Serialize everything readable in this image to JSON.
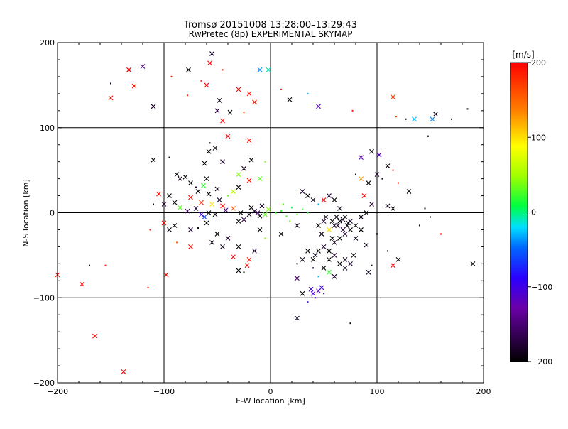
{
  "chart_data": {
    "type": "scatter",
    "title": "Tromsø 20151008 13:28:00–13:29:43",
    "subtitle": "RwPretec (8p) EXPERIMENTAL SKYMAP",
    "xlabel": "E-W location [km]",
    "ylabel": "N-S location [km]",
    "xlim": [
      -200,
      200
    ],
    "ylim": [
      -200,
      200
    ],
    "xticks": [
      "−200",
      "−100",
      "0",
      "100",
      "200"
    ],
    "yticks": [
      "−200",
      "−100",
      "0",
      "100",
      "200"
    ],
    "grid": true,
    "colorbar": {
      "label": "[m/s]",
      "range": [
        -200,
        200
      ],
      "ticks": [
        "200",
        "100",
        "0",
        "−100",
        "−200"
      ]
    },
    "marker_types": [
      "x",
      "dot"
    ],
    "points": [
      [
        -55,
        187,
        "x",
        -180
      ],
      [
        -120,
        172,
        "x",
        -150
      ],
      [
        -57,
        176,
        "x",
        200
      ],
      [
        -77,
        168,
        "x",
        -200
      ],
      [
        -45,
        168,
        "dot",
        190
      ],
      [
        -133,
        168,
        "x",
        200
      ],
      [
        -128,
        149,
        "x",
        190
      ],
      [
        -150,
        135,
        "x",
        200
      ],
      [
        -150,
        152,
        "dot",
        -180
      ],
      [
        -110,
        125,
        "x",
        -180
      ],
      [
        -60,
        150,
        "x",
        200
      ],
      [
        -30,
        145,
        "x",
        190
      ],
      [
        -48,
        132,
        "x",
        -190
      ],
      [
        -20,
        140,
        "x",
        190
      ],
      [
        -10,
        168,
        "x",
        -40
      ],
      [
        -2,
        168,
        "x",
        -10
      ],
      [
        -50,
        120,
        "x",
        -170
      ],
      [
        -15,
        130,
        "x",
        190
      ],
      [
        -78,
        138,
        "dot",
        180
      ],
      [
        -93,
        160,
        "dot",
        190
      ],
      [
        -65,
        155,
        "dot",
        180
      ],
      [
        -25,
        118,
        "dot",
        170
      ],
      [
        -38,
        118,
        "x",
        -200
      ],
      [
        -45,
        108,
        "x",
        200
      ],
      [
        18,
        133,
        "x",
        -200
      ],
      [
        35,
        140,
        "dot",
        -30
      ],
      [
        45,
        125,
        "x",
        -120
      ],
      [
        10,
        145,
        "dot",
        190
      ],
      [
        77,
        120,
        "dot",
        190
      ],
      [
        115,
        136,
        "x",
        170
      ],
      [
        135,
        110,
        "x",
        -30
      ],
      [
        152,
        110,
        "x",
        -40
      ],
      [
        155,
        116,
        "x",
        -190
      ],
      [
        148,
        90,
        "dot",
        -200
      ],
      [
        170,
        110,
        "dot",
        -190
      ],
      [
        185,
        122,
        "dot",
        -200
      ],
      [
        127,
        110,
        "dot",
        -200
      ],
      [
        118,
        113,
        "dot",
        170
      ],
      [
        -40,
        90,
        "x",
        200
      ],
      [
        -20,
        85,
        "x",
        190
      ],
      [
        -57,
        82,
        "dot",
        -200
      ],
      [
        -58,
        72,
        "x",
        -200
      ],
      [
        -52,
        76,
        "x",
        -190
      ],
      [
        -62,
        58,
        "x",
        -200
      ],
      [
        -45,
        60,
        "x",
        -180
      ],
      [
        -95,
        65,
        "dot",
        -190
      ],
      [
        -110,
        62,
        "x",
        -200
      ],
      [
        -88,
        45,
        "x",
        -200
      ],
      [
        -85,
        40,
        "x",
        -190
      ],
      [
        -80,
        42,
        "x",
        -200
      ],
      [
        -75,
        35,
        "x",
        -200
      ],
      [
        -70,
        30,
        "dot",
        -180
      ],
      [
        -68,
        25,
        "x",
        -200
      ],
      [
        -75,
        18,
        "x",
        190
      ],
      [
        -65,
        12,
        "x",
        180
      ],
      [
        -55,
        10,
        "x",
        100
      ],
      [
        -48,
        15,
        "x",
        -180
      ],
      [
        -40,
        20,
        "dot",
        30
      ],
      [
        -35,
        5,
        "x",
        150
      ],
      [
        -45,
        8,
        "x",
        200
      ],
      [
        -58,
        0,
        "x",
        -200
      ],
      [
        -62,
        -5,
        "x",
        -60
      ],
      [
        -52,
        -2,
        "x",
        -200
      ],
      [
        -42,
        3,
        "x",
        -150
      ],
      [
        -70,
        5,
        "x",
        -180
      ],
      [
        -78,
        2,
        "x",
        -160
      ],
      [
        -85,
        6,
        "x",
        30
      ],
      [
        -65,
        -2,
        "x",
        -100
      ],
      [
        -28,
        0,
        "x",
        -200
      ],
      [
        -20,
        -2,
        "x",
        -190
      ],
      [
        -15,
        2,
        "x",
        -180
      ],
      [
        -10,
        -4,
        "x",
        -200
      ],
      [
        -25,
        -8,
        "x",
        -170
      ],
      [
        -18,
        6,
        "x",
        -200
      ],
      [
        -12,
        0,
        "x",
        -150
      ],
      [
        -30,
        -10,
        "x",
        -200
      ],
      [
        -8,
        8,
        "x",
        -180
      ],
      [
        -5,
        -2,
        "x",
        30
      ],
      [
        -2,
        4,
        "x",
        40
      ],
      [
        5,
        0,
        "dot",
        10
      ],
      [
        10,
        2,
        "dot",
        20
      ],
      [
        15,
        -4,
        "dot",
        20
      ],
      [
        20,
        6,
        "dot",
        10
      ],
      [
        25,
        -2,
        "dot",
        30
      ],
      [
        30,
        4,
        "dot",
        20
      ],
      [
        35,
        0,
        "dot",
        10
      ],
      [
        12,
        10,
        "dot",
        30
      ],
      [
        18,
        -10,
        "dot",
        40
      ],
      [
        -35,
        25,
        "x",
        60
      ],
      [
        -30,
        30,
        "x",
        -200
      ],
      [
        -20,
        38,
        "x",
        190
      ],
      [
        -10,
        40,
        "x",
        30
      ],
      [
        -25,
        52,
        "x",
        -190
      ],
      [
        -18,
        62,
        "x",
        -200
      ],
      [
        -5,
        60,
        "dot",
        40
      ],
      [
        -30,
        45,
        "x",
        40
      ],
      [
        -50,
        28,
        "x",
        -190
      ],
      [
        -58,
        22,
        "x",
        -200
      ],
      [
        -60,
        40,
        "x",
        -200
      ],
      [
        -63,
        32,
        "x",
        20
      ],
      [
        -105,
        22,
        "x",
        200
      ],
      [
        -100,
        10,
        "x",
        -180
      ],
      [
        -95,
        20,
        "x",
        -200
      ],
      [
        -90,
        12,
        "x",
        -200
      ],
      [
        -100,
        -12,
        "x",
        200
      ],
      [
        -95,
        -20,
        "x",
        -190
      ],
      [
        -90,
        -15,
        "x",
        -200
      ],
      [
        -75,
        -20,
        "x",
        -180
      ],
      [
        -60,
        -12,
        "x",
        -200
      ],
      [
        -50,
        -25,
        "x",
        -200
      ],
      [
        -55,
        -35,
        "x",
        -190
      ],
      [
        -40,
        -30,
        "x",
        -180
      ],
      [
        -30,
        -40,
        "x",
        -200
      ],
      [
        -20,
        -55,
        "x",
        190
      ],
      [
        -22,
        -62,
        "x",
        200
      ],
      [
        -25,
        -70,
        "dot",
        -200
      ],
      [
        -30,
        -68,
        "x",
        -200
      ],
      [
        -15,
        -45,
        "x",
        -180
      ],
      [
        -5,
        -30,
        "dot",
        40
      ],
      [
        -10,
        -20,
        "x",
        -200
      ],
      [
        -35,
        -52,
        "x",
        200
      ],
      [
        -45,
        -40,
        "x",
        -190
      ],
      [
        -68,
        -18,
        "dot",
        -190
      ],
      [
        -75,
        -40,
        "x",
        190
      ],
      [
        -200,
        -73,
        "x",
        200
      ],
      [
        -177,
        -84,
        "x",
        200
      ],
      [
        -170,
        -62,
        "dot",
        -200
      ],
      [
        -165,
        -145,
        "x",
        200
      ],
      [
        -155,
        -62,
        "dot",
        190
      ],
      [
        -138,
        -187,
        "x",
        200
      ],
      [
        -115,
        -88,
        "dot",
        190
      ],
      [
        -113,
        -20,
        "dot",
        190
      ],
      [
        -98,
        -73,
        "x",
        200
      ],
      [
        -110,
        10,
        "dot",
        -190
      ],
      [
        -88,
        -35,
        "dot",
        150
      ],
      [
        10,
        -25,
        "x",
        -200
      ],
      [
        25,
        -15,
        "x",
        -190
      ],
      [
        30,
        25,
        "x",
        -180
      ],
      [
        35,
        20,
        "x",
        -200
      ],
      [
        40,
        15,
        "x",
        -190
      ],
      [
        45,
        10,
        "dot",
        -30
      ],
      [
        50,
        15,
        "x",
        200
      ],
      [
        55,
        20,
        "x",
        -180
      ],
      [
        60,
        15,
        "x",
        -200
      ],
      [
        65,
        5,
        "x",
        -190
      ],
      [
        70,
        -5,
        "x",
        -200
      ],
      [
        75,
        -10,
        "x",
        -180
      ],
      [
        80,
        -15,
        "x",
        -200
      ],
      [
        85,
        -5,
        "x",
        -190
      ],
      [
        90,
        0,
        "x",
        -200
      ],
      [
        95,
        10,
        "x",
        -180
      ],
      [
        88,
        20,
        "x",
        200
      ],
      [
        92,
        35,
        "x",
        -200
      ],
      [
        85,
        40,
        "x",
        130
      ],
      [
        80,
        45,
        "dot",
        -200
      ],
      [
        100,
        45,
        "x",
        -180
      ],
      [
        105,
        40,
        "dot",
        -190
      ],
      [
        85,
        65,
        "x",
        -120
      ],
      [
        95,
        72,
        "x",
        -200
      ],
      [
        102,
        68,
        "x",
        -110
      ],
      [
        110,
        55,
        "x",
        -200
      ],
      [
        115,
        50,
        "dot",
        190
      ],
      [
        120,
        35,
        "dot",
        190
      ],
      [
        130,
        25,
        "x",
        -200
      ],
      [
        145,
        5,
        "dot",
        -190
      ],
      [
        115,
        5,
        "x",
        -200
      ],
      [
        110,
        8,
        "x",
        -190
      ],
      [
        140,
        -15,
        "dot",
        -200
      ],
      [
        150,
        -5,
        "dot",
        -190
      ],
      [
        160,
        -25,
        "dot",
        190
      ],
      [
        40,
        -55,
        "x",
        -200
      ],
      [
        42,
        -50,
        "x",
        -190
      ],
      [
        45,
        -45,
        "x",
        -200
      ],
      [
        50,
        -40,
        "x",
        -180
      ],
      [
        55,
        -45,
        "x",
        -200
      ],
      [
        60,
        -35,
        "x",
        -190
      ],
      [
        65,
        -30,
        "x",
        -200
      ],
      [
        70,
        -25,
        "x",
        -180
      ],
      [
        75,
        -20,
        "x",
        -200
      ],
      [
        80,
        -30,
        "x",
        -190
      ],
      [
        55,
        -55,
        "x",
        -200
      ],
      [
        60,
        -50,
        "x",
        -180
      ],
      [
        65,
        -60,
        "x",
        -200
      ],
      [
        70,
        -55,
        "x",
        -190
      ],
      [
        75,
        -60,
        "x",
        -180
      ],
      [
        50,
        -65,
        "x",
        -200
      ],
      [
        55,
        -70,
        "x",
        20
      ],
      [
        60,
        -75,
        "x",
        -180
      ],
      [
        70,
        -65,
        "x",
        -190
      ],
      [
        78,
        -50,
        "x",
        -200
      ],
      [
        45,
        -15,
        "x",
        -200
      ],
      [
        50,
        -10,
        "x",
        -180
      ],
      [
        55,
        -20,
        "x",
        100
      ],
      [
        60,
        -15,
        "x",
        -190
      ],
      [
        65,
        -10,
        "x",
        -200
      ],
      [
        48,
        -25,
        "x",
        -190
      ],
      [
        58,
        -30,
        "x",
        -200
      ],
      [
        68,
        -20,
        "x",
        -180
      ],
      [
        72,
        -15,
        "x",
        -200
      ],
      [
        62,
        -5,
        "x",
        -190
      ],
      [
        35,
        -45,
        "x",
        -200
      ],
      [
        30,
        -55,
        "x",
        -190
      ],
      [
        25,
        -60,
        "dot",
        -200
      ],
      [
        40,
        -65,
        "dot",
        -180
      ],
      [
        45,
        -75,
        "dot",
        -30
      ],
      [
        25,
        -77,
        "x",
        -150
      ],
      [
        30,
        -95,
        "x",
        -200
      ],
      [
        25,
        -124,
        "x",
        -190
      ],
      [
        38,
        -90,
        "x",
        -100
      ],
      [
        40,
        -95,
        "x",
        -110
      ],
      [
        45,
        -92,
        "x",
        -120
      ],
      [
        48,
        -88,
        "x",
        -100
      ],
      [
        42,
        -100,
        "dot",
        -110
      ],
      [
        35,
        -105,
        "dot",
        -90
      ],
      [
        50,
        -95,
        "dot",
        -80
      ],
      [
        75,
        -130,
        "dot",
        -200
      ],
      [
        92,
        -70,
        "x",
        -190
      ],
      [
        95,
        -62,
        "dot",
        -200
      ],
      [
        120,
        -55,
        "x",
        -200
      ],
      [
        115,
        -62,
        "x",
        200
      ],
      [
        110,
        -45,
        "dot",
        -190
      ],
      [
        190,
        -60,
        "x",
        -200
      ],
      [
        100,
        -25,
        "dot",
        -200
      ],
      [
        90,
        -38,
        "x",
        -190
      ],
      [
        85,
        -20,
        "x",
        -200
      ],
      [
        52,
        -5,
        "x",
        -190
      ],
      [
        58,
        -10,
        "x",
        -200
      ],
      [
        63,
        -15,
        "x",
        -180
      ],
      [
        68,
        -8,
        "x",
        -190
      ],
      [
        73,
        -12,
        "x",
        -200
      ]
    ]
  }
}
